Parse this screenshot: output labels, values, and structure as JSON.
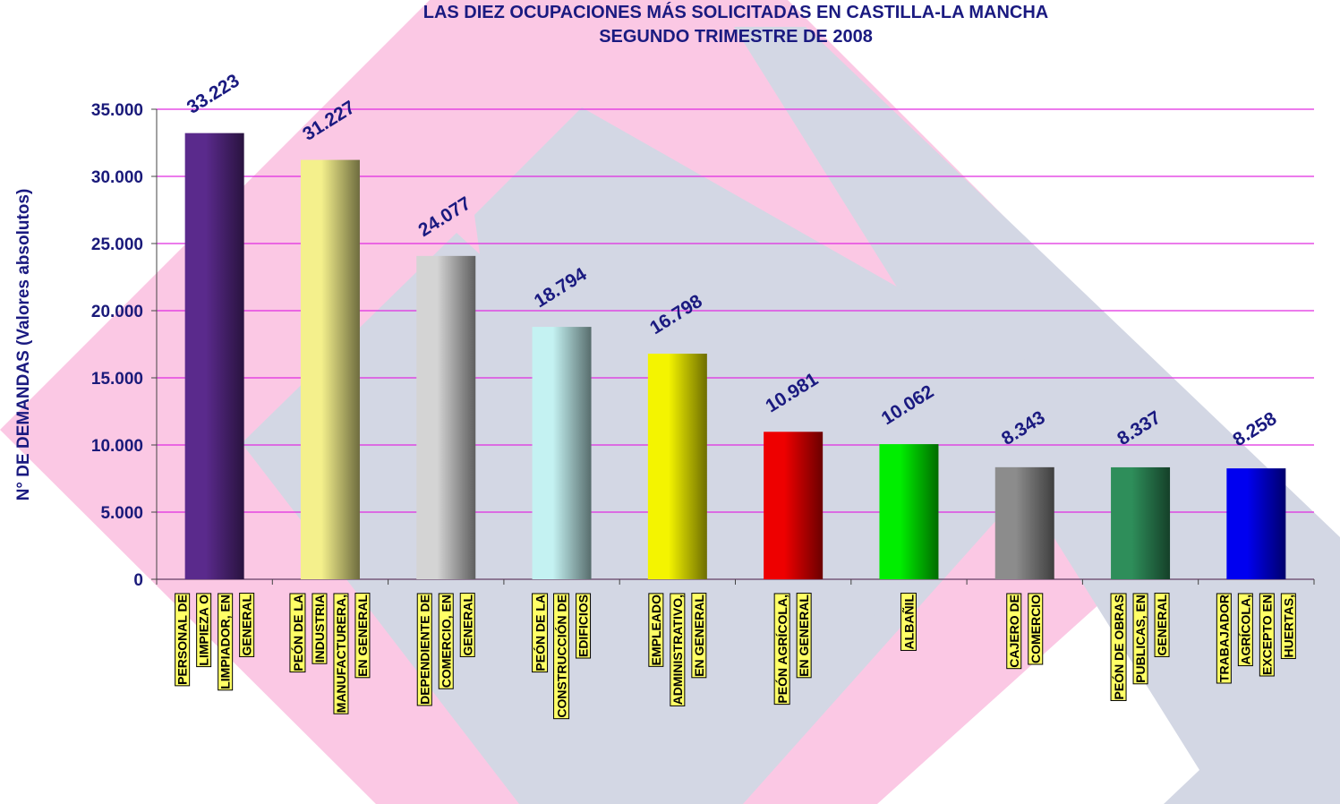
{
  "chart_data": {
    "type": "bar",
    "title": "LAS DIEZ OCUPACIONES MÁS SOLICITADAS EN CASTILLA-LA MANCHA",
    "subtitle": "SEGUNDO TRIMESTRE DE 2008",
    "y_label": "N° DE DEMANDAS (Valores absolutos)",
    "categories": [
      [
        "PERSONAL DE",
        "LIMPIEZA O",
        "LIMPIADOR, EN",
        "GENERAL"
      ],
      [
        "PEÓN DE LA",
        "INDUSTRIA",
        "MANUFACTURERA,",
        "EN GENERAL"
      ],
      [
        "DEPENDIENTE DE",
        "COMERCIO, EN",
        "GENERAL"
      ],
      [
        "PEÓN DE LA",
        "CONSTRUCCIÓN DE",
        "EDIFICIOS"
      ],
      [
        "EMPLEADO",
        "ADMINISTRATIVO,",
        "EN GENERAL"
      ],
      [
        "PEÓN AGRÍCOLA,",
        "EN GENERAL"
      ],
      [
        "ALBAÑIL"
      ],
      [
        "CAJERO DE",
        "COMERCIO"
      ],
      [
        "PEÓN DE OBRAS",
        "PUBLICAS, EN",
        "GENERAL"
      ],
      [
        "TRABAJADOR",
        "AGRÍCOLA,",
        "EXCEPTO EN",
        "HUERTAS,"
      ]
    ],
    "values": [
      33223,
      31227,
      24077,
      18794,
      16798,
      10981,
      10062,
      8343,
      8337,
      8258
    ],
    "value_labels": [
      "33.223",
      "31.227",
      "24.077",
      "18.794",
      "16.798",
      "10.981",
      "10.062",
      "8.343",
      "8.337",
      "8.258"
    ],
    "colors": [
      "#5a2a8c",
      "#f4f08c",
      "#d4d4d4",
      "#c4f2f2",
      "#f4f400",
      "#ee0000",
      "#00ee00",
      "#8c8c8c",
      "#2e8e5a",
      "#0000f0"
    ],
    "ylim": [
      0,
      35000
    ],
    "yticks": [
      0,
      {
        "value": 5000,
        "label": "5.000"
      },
      {
        "value": 10000,
        "label": "10.000"
      },
      {
        "value": 15000,
        "label": "15.000"
      },
      {
        "value": 20000,
        "label": "20.000"
      },
      {
        "value": 25000,
        "label": "25.000"
      },
      {
        "value": 30000,
        "label": "30.000"
      },
      {
        "value": 35000,
        "label": "35.000"
      }
    ],
    "grid": true
  }
}
